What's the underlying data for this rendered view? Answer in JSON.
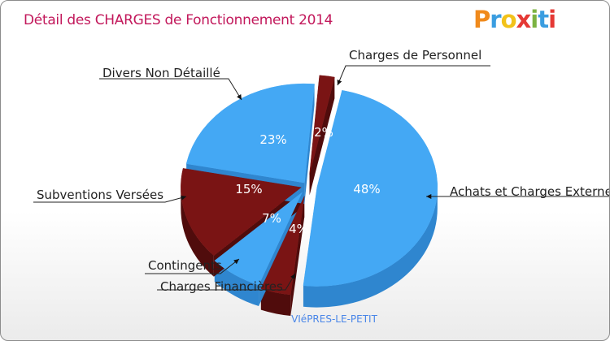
{
  "header": {
    "title": "Détail des CHARGES de Fonctionnement 2014",
    "logo_text": "Proxiti"
  },
  "colors": {
    "blue": "#44a8f4",
    "blue_side": "#2f86cf",
    "red": "#7a1414",
    "red_side": "#500c0c"
  },
  "chart_data": {
    "type": "pie",
    "style": "3d-exploded",
    "title": "Détail des CHARGES de Fonctionnement 2014",
    "subtitle": "VIéPRES-LE-PETIT",
    "unit": "%",
    "slices": [
      {
        "label": "Achats et Charges Externes",
        "value": 48,
        "value_label": "48%",
        "color": "blue"
      },
      {
        "label": "Charges Financières",
        "value": 4,
        "value_label": "4%",
        "color": "red"
      },
      {
        "label": "Contingents",
        "value": 7,
        "value_label": "7%",
        "color": "blue"
      },
      {
        "label": "Subventions Versées",
        "value": 15,
        "value_label": "15%",
        "color": "red"
      },
      {
        "label": "Divers Non Détaillé",
        "value": 23,
        "value_label": "23%",
        "color": "blue"
      },
      {
        "label": "Charges de Personnel",
        "value": 2,
        "value_label": "2%",
        "color": "red"
      }
    ]
  }
}
